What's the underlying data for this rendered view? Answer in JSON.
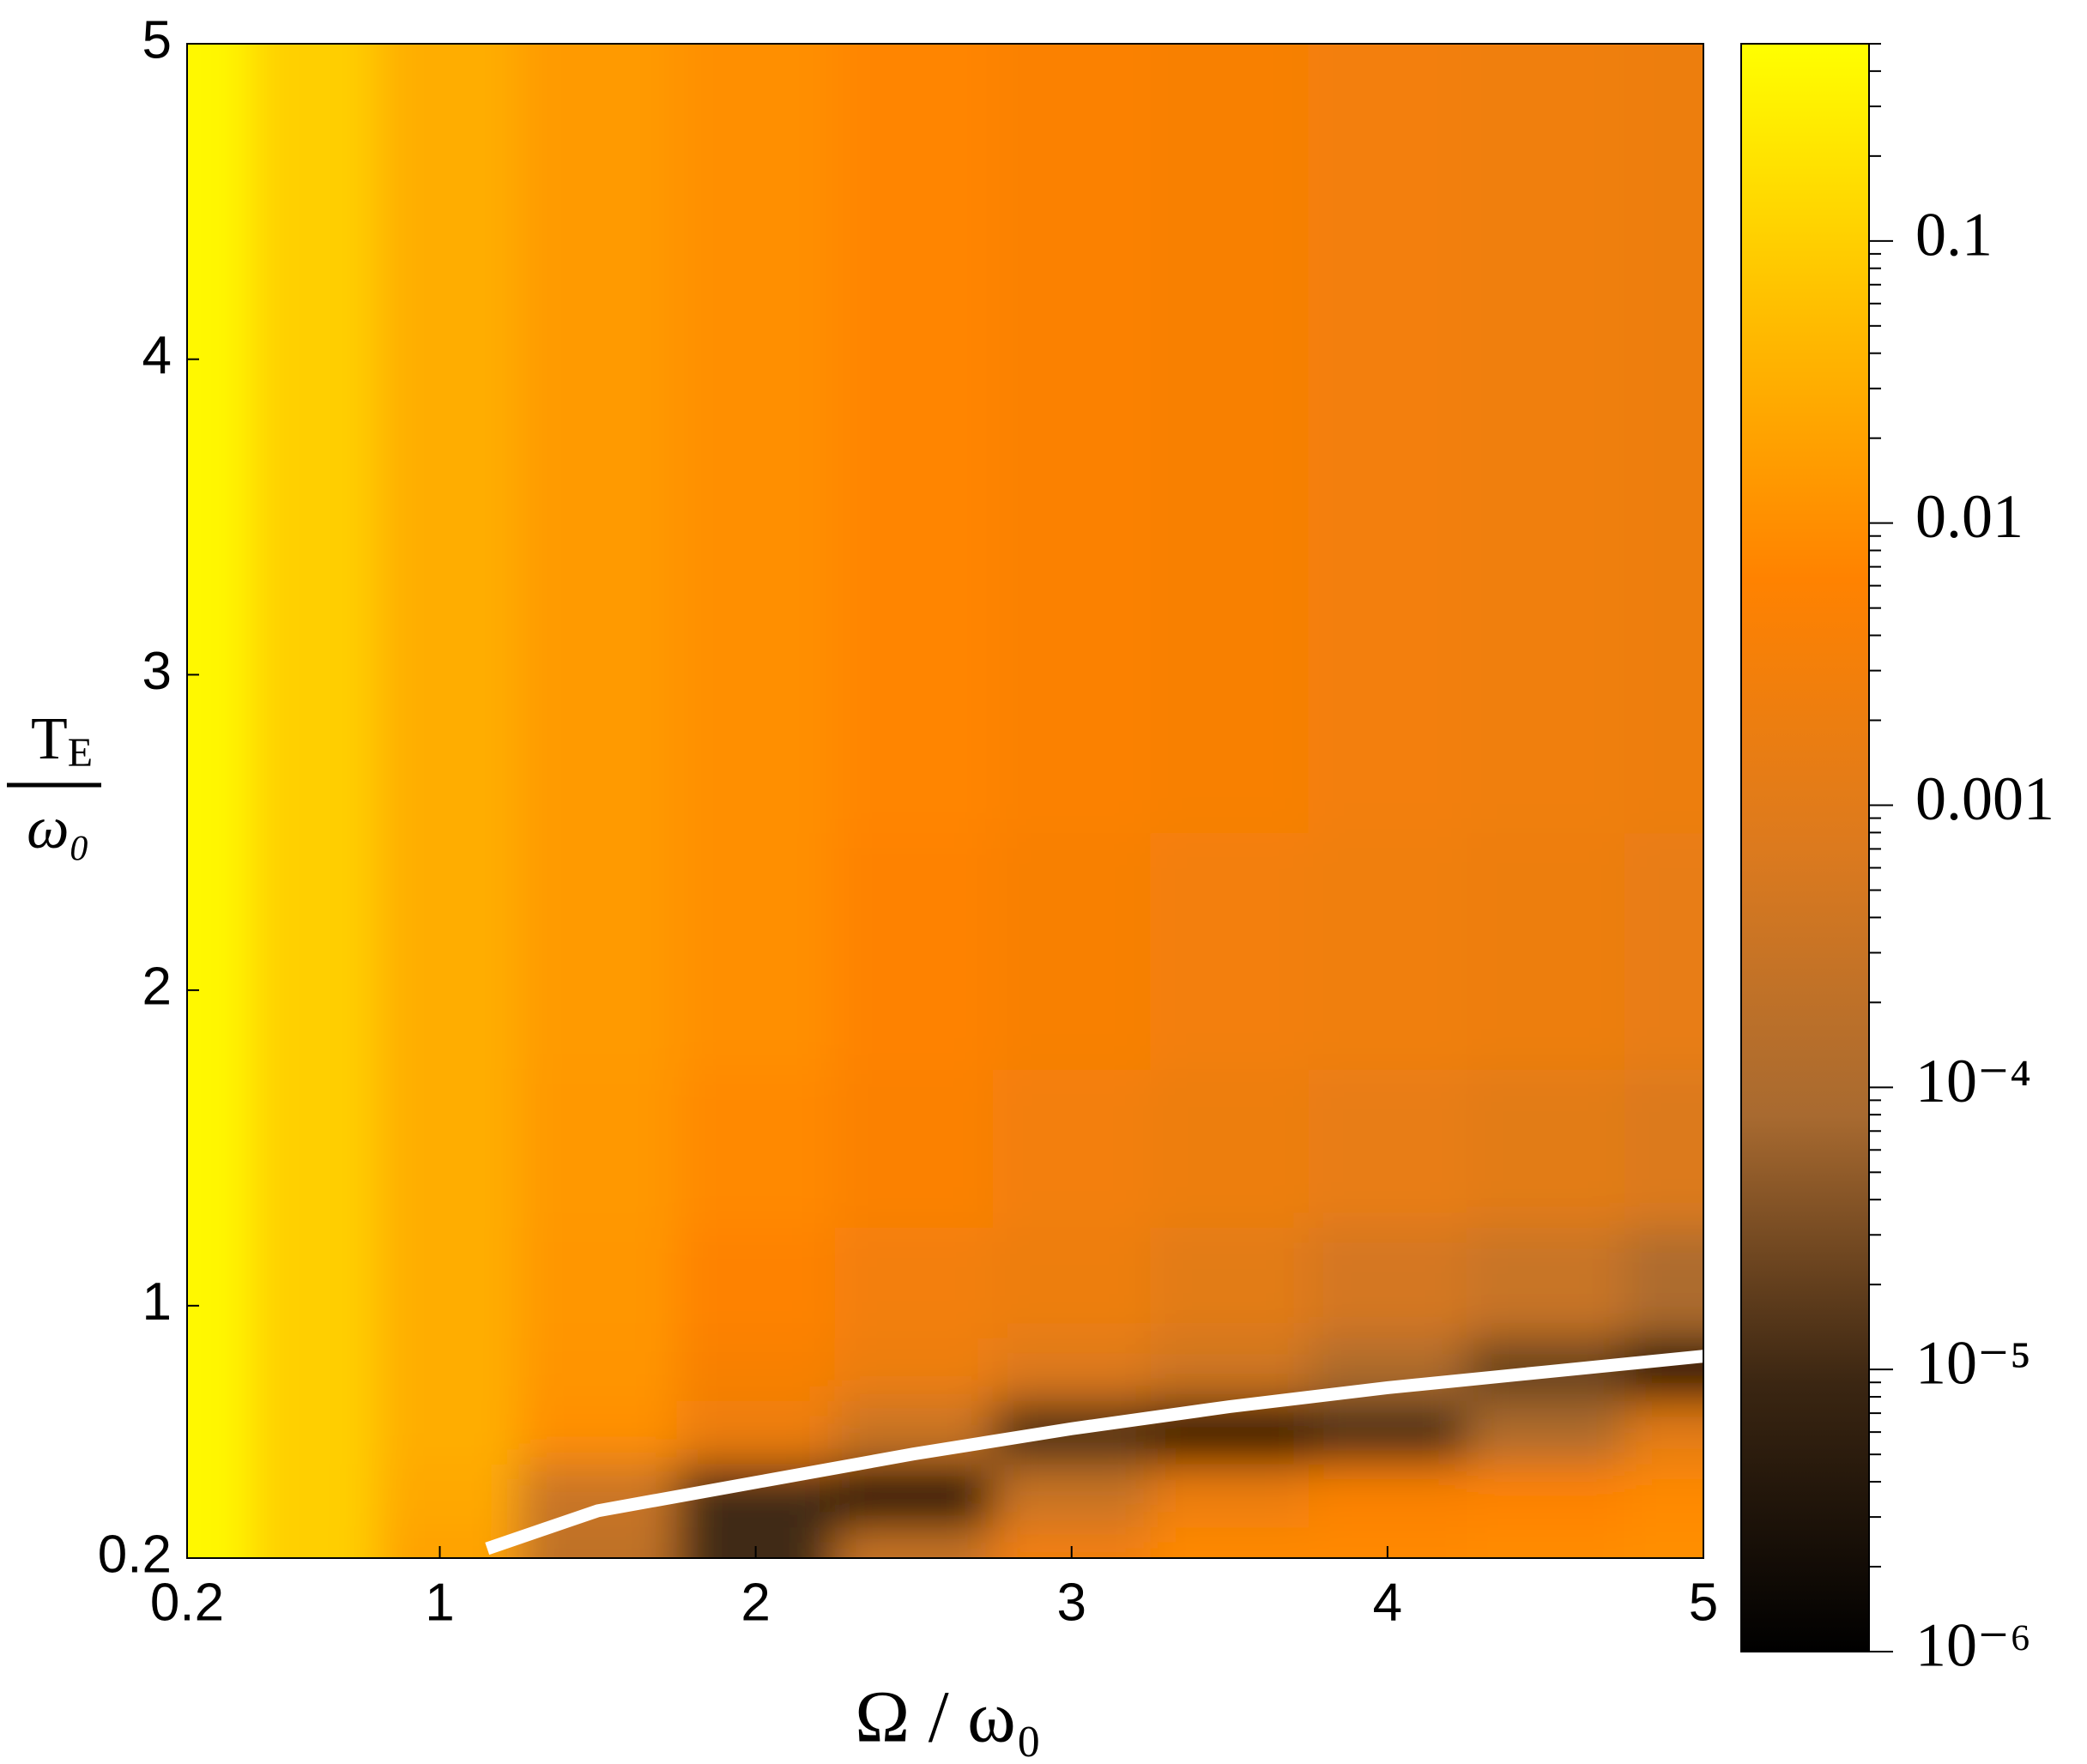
{
  "chart_data": {
    "type": "heatmap",
    "xlabel": "Ω / ω₀",
    "ylabel_numerator": "T",
    "ylabel_numerator_sub": "E",
    "ylabel_denominator": "ω₀",
    "xlim": [
      0.2,
      5
    ],
    "ylim": [
      0.2,
      5
    ],
    "xticks": [
      0.2,
      1,
      2,
      3,
      4,
      5
    ],
    "yticks": [
      0.2,
      1,
      2,
      3,
      4,
      5
    ],
    "x": [
      0.2,
      0.6,
      1,
      1.5,
      2,
      2.5,
      3,
      3.5,
      4,
      4.5,
      5
    ],
    "y": [
      0.2,
      0.4,
      0.6,
      0.8,
      1,
      1.5,
      2,
      3,
      4,
      5
    ],
    "z": [
      [
        0.4,
        0.1,
        0.02,
        0.0002,
        1e-05,
        0.0003,
        0.003,
        0.008,
        0.008,
        0.009,
        0.01
      ],
      [
        0.4,
        0.1,
        0.025,
        0.0003,
        1e-05,
        1e-06,
        0.0003,
        0.002,
        0.005,
        0.006,
        0.008
      ],
      [
        0.4,
        0.1,
        0.03,
        0.01,
        0.002,
        0.0003,
        1e-05,
        1e-06,
        1e-05,
        0.0001,
        0.001
      ],
      [
        0.4,
        0.1,
        0.03,
        0.012,
        0.004,
        0.002,
        0.0008,
        0.0004,
        0.0001,
        2e-05,
        1e-06
      ],
      [
        0.4,
        0.1,
        0.03,
        0.013,
        0.006,
        0.003,
        0.002,
        0.001,
        0.0005,
        0.0003,
        0.0001
      ],
      [
        0.4,
        0.1,
        0.03,
        0.014,
        0.008,
        0.005,
        0.003,
        0.002,
        0.0015,
        0.001,
        0.0007
      ],
      [
        0.4,
        0.1,
        0.03,
        0.015,
        0.01,
        0.006,
        0.004,
        0.003,
        0.0025,
        0.002,
        0.0015
      ],
      [
        0.4,
        0.1,
        0.03,
        0.015,
        0.01,
        0.007,
        0.005,
        0.004,
        0.003,
        0.0025,
        0.002
      ],
      [
        0.4,
        0.1,
        0.03,
        0.015,
        0.01,
        0.007,
        0.005,
        0.004,
        0.003,
        0.0025,
        0.002
      ],
      [
        0.4,
        0.1,
        0.03,
        0.015,
        0.01,
        0.007,
        0.005,
        0.004,
        0.003,
        0.0025,
        0.002
      ]
    ],
    "clim": [
      1e-06,
      0.5
    ],
    "log_color_scale": true,
    "colormap": [
      "#000000",
      "#3b2612",
      "#a86a30",
      "#dc7a1e",
      "#ff8200",
      "#ffbe00",
      "#ffff00"
    ],
    "cticks": [
      0.1,
      0.01,
      0.001,
      {
        "value": 0.0001,
        "label": "10⁻⁴"
      },
      {
        "value": 1e-05,
        "label": "10⁻⁵"
      },
      {
        "value": 1e-06,
        "label": "10⁻⁶"
      }
    ],
    "curve": {
      "color": "#ffffff",
      "x": [
        1.15,
        1.5,
        2,
        2.5,
        3,
        3.5,
        4,
        4.5,
        5
      ],
      "y": [
        0.23,
        0.35,
        0.44,
        0.53,
        0.61,
        0.68,
        0.74,
        0.79,
        0.84
      ]
    }
  }
}
